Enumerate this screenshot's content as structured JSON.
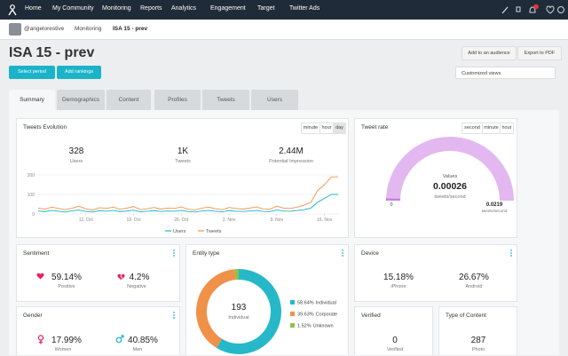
{
  "nav": {
    "items": [
      "Home",
      "My Community",
      "Monitoring",
      "Reports",
      "Analytics",
      "Engagement",
      "Target",
      "Twitter Ads"
    ]
  },
  "breadcrumb": [
    "@angelorestive",
    "Monitoring",
    "ISA 15 - prev"
  ],
  "header": {
    "title": "ISA 15 - prev",
    "actions": [
      "Add to an audience",
      "Export to PDF"
    ],
    "buttons": [
      "Select period",
      "Add rankings"
    ],
    "view_select": "Customized views"
  },
  "tabs": [
    "Summary",
    "Demographics",
    "Content",
    "Profiles",
    "Tweets",
    "Users"
  ],
  "tweets_evolution": {
    "title": "Tweets Evolution",
    "modes": [
      "minute",
      "hour",
      "day"
    ],
    "stats": [
      {
        "value": "328",
        "label": "Users"
      },
      {
        "value": "1K",
        "label": "Tweets"
      },
      {
        "value": "2.44M",
        "label": "Potential Impression"
      }
    ],
    "chart": {
      "type": "line",
      "categories": [
        null,
        null,
        null,
        null,
        null,
        null,
        null,
        "12. Oct",
        null,
        null,
        null,
        null,
        null,
        null,
        "19. Oct",
        null,
        null,
        null,
        null,
        null,
        null,
        "26. Oct",
        null,
        null,
        null,
        null,
        null,
        null,
        "2. Nov",
        null,
        null,
        null,
        null,
        null,
        null,
        "9. Nov",
        null,
        null,
        null,
        null,
        null,
        null,
        "16. Nov",
        null,
        null
      ],
      "series": [
        {
          "name": "Users",
          "color": "#1ab3c9",
          "values": [
            15,
            12,
            18,
            14,
            10,
            16,
            20,
            13,
            10,
            17,
            14,
            18,
            12,
            15,
            19,
            11,
            14,
            17,
            13,
            15,
            14,
            18,
            12,
            10,
            15,
            18,
            14,
            11,
            17,
            14,
            13,
            15,
            18,
            13,
            12,
            20,
            15,
            14,
            18,
            22,
            30,
            60,
            80,
            100,
            100
          ]
        },
        {
          "name": "Tweets",
          "color": "#f0914a",
          "values": [
            30,
            25,
            35,
            28,
            22,
            30,
            40,
            26,
            20,
            32,
            28,
            35,
            24,
            30,
            38,
            22,
            27,
            33,
            25,
            30,
            28,
            36,
            24,
            20,
            30,
            35,
            27,
            22,
            33,
            28,
            25,
            30,
            36,
            26,
            24,
            40,
            30,
            28,
            35,
            45,
            60,
            120,
            150,
            190,
            190
          ]
        }
      ],
      "ylim": [
        0,
        200
      ],
      "yticks": [
        0,
        100,
        200
      ],
      "grid": true
    }
  },
  "tweet_rate": {
    "title": "Tweet rate",
    "modes": [
      "second",
      "minute",
      "hour"
    ],
    "gauge": {
      "type": "gauge",
      "caption": "Values",
      "value": 0.00026,
      "unit": "tweets/second",
      "min": 0,
      "max": 0.0219,
      "color": "#c77fe0",
      "track_color": "#e3b8f0"
    }
  },
  "sentiment": {
    "title": "Sentiment",
    "items": [
      {
        "value": "59.14%",
        "label": "Positive"
      },
      {
        "value": "4.2%",
        "label": "Negative"
      }
    ]
  },
  "entity_type": {
    "title": "Entity type",
    "center_value": "193",
    "center_label": "Individual",
    "chart": {
      "type": "pie",
      "categories": [
        "Individual",
        "Corporate",
        "Unknown"
      ],
      "values": [
        58.64,
        39.63,
        1.52
      ],
      "value_labels": [
        "58.64%",
        "39.63%",
        "1.52%"
      ],
      "colors": [
        "#26b8c9",
        "#f0914a",
        "#8bc34a"
      ]
    }
  },
  "device": {
    "title": "Device",
    "items": [
      {
        "value": "15.18%",
        "label": "iPhone"
      },
      {
        "value": "26.67%",
        "label": "Android"
      }
    ]
  },
  "gender": {
    "title": "Gender",
    "items": [
      {
        "value": "17.99%",
        "label": "Women"
      },
      {
        "value": "40.85%",
        "label": "Men"
      }
    ]
  },
  "verified": {
    "title": "Verified",
    "value": "0",
    "label": "Verified"
  },
  "content_type": {
    "title": "Type of Content",
    "value": "287",
    "label": "Photo"
  }
}
